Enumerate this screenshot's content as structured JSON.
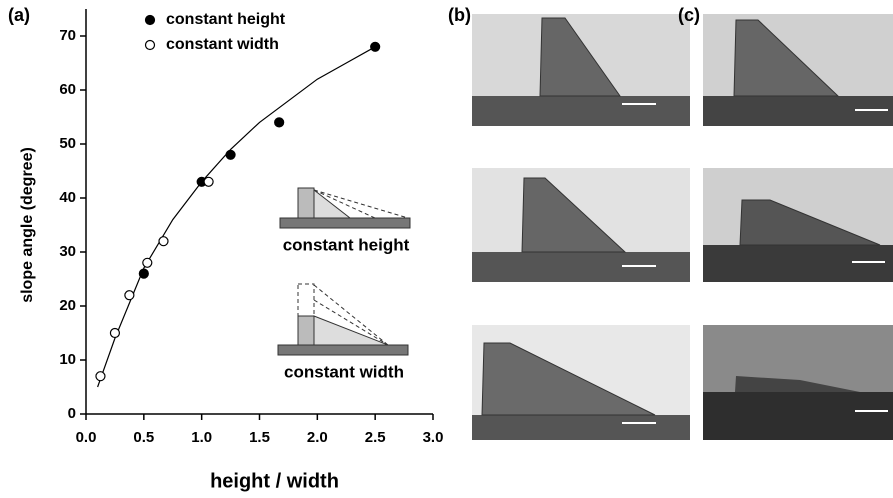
{
  "chart_data": {
    "type": "scatter",
    "panel_labels": [
      "(a)",
      "(b)",
      "(c)"
    ],
    "xlabel": "height / width",
    "ylabel": "slope angle (degree)",
    "xlim": [
      0,
      3
    ],
    "ylim": [
      0,
      75
    ],
    "xticks": [
      {
        "value": 0,
        "label": "0.0"
      },
      0.5,
      {
        "value": 1,
        "label": "1.0"
      },
      1.5,
      {
        "value": 2,
        "label": "2.0"
      },
      2.5,
      {
        "value": 3,
        "label": "3.0"
      }
    ],
    "yticks": [
      0,
      10,
      20,
      30,
      40,
      50,
      60,
      70
    ],
    "series": [
      {
        "name": "constant height",
        "color": "#000000",
        "filled": true,
        "x": [
          0.5,
          1.0,
          1.25,
          1.67,
          2.5
        ],
        "values": [
          26,
          43,
          48,
          54,
          68
        ]
      },
      {
        "name": "constant width",
        "color": "#000000",
        "filled": false,
        "x": [
          0.125,
          0.25,
          0.375,
          0.53,
          0.67,
          1.06
        ],
        "values": [
          7,
          15,
          22,
          28,
          32,
          43
        ]
      }
    ],
    "fit": {
      "color": "#000000",
      "x": [
        0.1,
        0.25,
        0.5,
        0.75,
        1.0,
        1.25,
        1.5,
        1.75,
        2.0,
        2.25,
        2.5
      ],
      "values": [
        5,
        14,
        27,
        36,
        43,
        49,
        54,
        58,
        62,
        65,
        68
      ]
    },
    "annotations": [
      "constant height",
      "constant width"
    ]
  }
}
